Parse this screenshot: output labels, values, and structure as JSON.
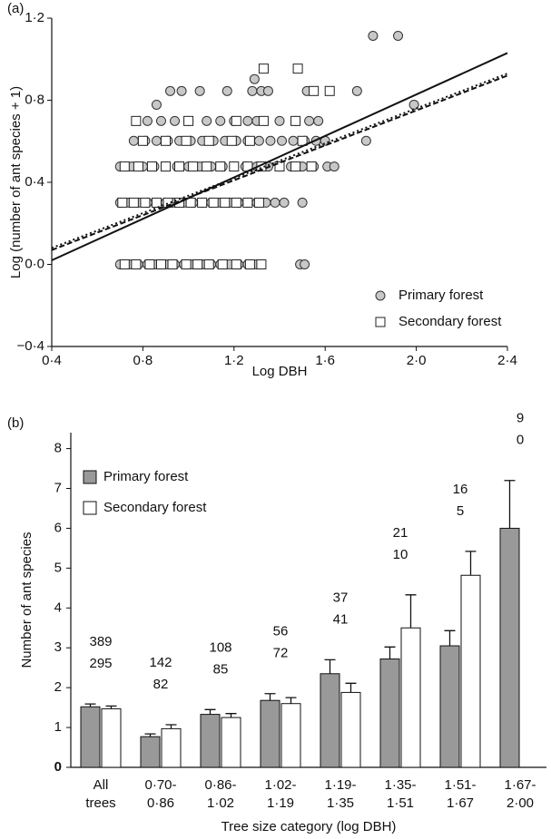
{
  "chart_data": [
    {
      "type": "scatter",
      "panel_label": "(a)",
      "x_label": "Log DBH",
      "y_label": "Log (number of ant species + 1)",
      "xlim": [
        0.4,
        2.4
      ],
      "ylim": [
        -0.4,
        1.2
      ],
      "xticks": [
        {
          "value": 0.4,
          "label": "0·4"
        },
        {
          "value": 0.8,
          "label": "0·8"
        },
        {
          "value": 1.2,
          "label": "1·2"
        },
        {
          "value": 1.6,
          "label": "1·6"
        },
        {
          "value": 2.0,
          "label": "2·0"
        },
        {
          "value": 2.4,
          "label": "2·4"
        }
      ],
      "yticks": [
        {
          "value": -0.4,
          "label": "−0·4"
        },
        {
          "value": 0.0,
          "label": "0·0"
        },
        {
          "value": 0.4,
          "label": "0·4"
        },
        {
          "value": 0.8,
          "label": "0·8"
        },
        {
          "value": 1.2,
          "label": "1·2"
        }
      ],
      "legend": "lower right",
      "series": [
        {
          "name": "Primary forest",
          "marker": "circle",
          "color": "#c8c8c8",
          "x": [
            0.7,
            0.74,
            0.78,
            0.82,
            0.86,
            0.9,
            0.94,
            0.98,
            1.02,
            1.06,
            1.1,
            1.14,
            1.18,
            1.22,
            1.26,
            1.3,
            1.49,
            1.51,
            0.7,
            0.74,
            0.78,
            0.82,
            0.86,
            0.9,
            0.94,
            0.98,
            1.02,
            1.06,
            1.1,
            1.14,
            1.18,
            1.22,
            1.26,
            1.3,
            1.34,
            1.38,
            1.42,
            1.5,
            0.7,
            0.75,
            0.8,
            0.85,
            0.9,
            0.95,
            1.0,
            1.05,
            1.1,
            1.15,
            1.2,
            1.25,
            1.3,
            1.35,
            1.4,
            1.45,
            1.5,
            1.55,
            1.61,
            1.64,
            0.76,
            0.81,
            0.86,
            0.91,
            0.96,
            1.01,
            1.06,
            1.11,
            1.16,
            1.21,
            1.26,
            1.31,
            1.36,
            1.41,
            1.46,
            1.51,
            1.56,
            1.6,
            1.78,
            0.82,
            0.88,
            0.94,
            1.0,
            1.08,
            1.14,
            1.2,
            1.26,
            1.3,
            1.4,
            1.47,
            1.53,
            1.57,
            0.86,
            1.99,
            0.92,
            0.97,
            1.05,
            1.17,
            1.28,
            1.32,
            1.35,
            1.52,
            1.74,
            1.29,
            1.81,
            1.92
          ],
          "values": [
            0,
            0,
            0,
            0,
            0,
            0,
            0,
            0,
            0,
            0,
            0,
            0,
            0,
            0,
            0,
            0,
            0,
            0,
            0.301,
            0.301,
            0.301,
            0.301,
            0.301,
            0.301,
            0.301,
            0.301,
            0.301,
            0.301,
            0.301,
            0.301,
            0.301,
            0.301,
            0.301,
            0.301,
            0.301,
            0.301,
            0.301,
            0.301,
            0.477,
            0.477,
            0.477,
            0.477,
            0.477,
            0.477,
            0.477,
            0.477,
            0.477,
            0.477,
            0.477,
            0.477,
            0.477,
            0.477,
            0.477,
            0.477,
            0.477,
            0.477,
            0.477,
            0.477,
            0.602,
            0.602,
            0.602,
            0.602,
            0.602,
            0.602,
            0.602,
            0.602,
            0.602,
            0.602,
            0.602,
            0.602,
            0.602,
            0.602,
            0.602,
            0.602,
            0.602,
            0.602,
            0.602,
            0.699,
            0.699,
            0.699,
            0.699,
            0.699,
            0.699,
            0.699,
            0.699,
            0.699,
            0.699,
            0.699,
            0.699,
            0.699,
            0.778,
            0.778,
            0.845,
            0.845,
            0.845,
            0.845,
            0.845,
            0.845,
            0.845,
            0.845,
            0.845,
            0.903,
            1.114,
            1.114
          ]
        },
        {
          "name": "Secondary forest",
          "marker": "square",
          "color": "#ffffff",
          "x": [
            0.72,
            0.77,
            0.83,
            0.88,
            0.93,
            0.99,
            1.04,
            1.09,
            1.15,
            1.21,
            1.27,
            1.32,
            0.71,
            0.76,
            0.81,
            0.86,
            0.91,
            0.96,
            1.01,
            1.06,
            1.11,
            1.16,
            1.21,
            1.26,
            1.31,
            0.72,
            0.78,
            0.84,
            0.9,
            0.96,
            1.02,
            1.08,
            1.14,
            1.2,
            1.26,
            1.32,
            1.4,
            1.47,
            1.54,
            0.8,
            0.9,
            0.99,
            1.09,
            1.19,
            1.27,
            1.5,
            0.77,
            1.0,
            1.21,
            1.33,
            1.47,
            1.55,
            1.62,
            1.33,
            1.48
          ],
          "values": [
            0,
            0,
            0,
            0,
            0,
            0,
            0,
            0,
            0,
            0,
            0,
            0,
            0.301,
            0.301,
            0.301,
            0.301,
            0.301,
            0.301,
            0.301,
            0.301,
            0.301,
            0.301,
            0.301,
            0.301,
            0.301,
            0.477,
            0.477,
            0.477,
            0.477,
            0.477,
            0.477,
            0.477,
            0.477,
            0.477,
            0.477,
            0.477,
            0.477,
            0.477,
            0.477,
            0.602,
            0.602,
            0.602,
            0.602,
            0.602,
            0.602,
            0.602,
            0.699,
            0.699,
            0.699,
            0.699,
            0.699,
            0.845,
            0.845,
            0.954,
            0.954
          ]
        }
      ],
      "fit_lines": [
        {
          "x": [
            0.4,
            2.4
          ],
          "values": [
            0.02,
            1.03
          ],
          "dash": "solid"
        },
        {
          "x": [
            0.4,
            2.4
          ],
          "values": [
            0.07,
            0.92
          ],
          "dash": "dashed"
        },
        {
          "x": [
            0.4,
            2.4
          ],
          "values": [
            0.08,
            0.93
          ],
          "dash": "dotted"
        }
      ]
    },
    {
      "type": "bar",
      "panel_label": "(b)",
      "x_label": "Tree size category (log DBH)",
      "y_label": "Number of ant species",
      "categories": [
        [
          "All",
          "trees"
        ],
        [
          "0·70-",
          "0·86"
        ],
        [
          "0·86-",
          "1·02"
        ],
        [
          "1·02-",
          "1·19"
        ],
        [
          "1·19-",
          "1·35"
        ],
        [
          "1·35-",
          "1·51"
        ],
        [
          "1·51-",
          "1·67"
        ],
        [
          "1·67-",
          "2·00"
        ]
      ],
      "ylim": [
        0,
        8.4
      ],
      "yticks": [
        0,
        1,
        2,
        3,
        4,
        5,
        6,
        7,
        8
      ],
      "legend": "upper left",
      "series": [
        {
          "name": "Primary forest",
          "color": "#999999",
          "values": [
            1.52,
            0.77,
            1.33,
            1.68,
            2.35,
            2.72,
            3.05,
            6.0
          ],
          "errors": [
            0.07,
            0.07,
            0.12,
            0.17,
            0.35,
            0.3,
            0.38,
            1.2
          ],
          "n": [
            389,
            142,
            108,
            56,
            37,
            21,
            16,
            9
          ]
        },
        {
          "name": "Secondary forest",
          "color": "#ffffff",
          "values": [
            1.47,
            0.97,
            1.25,
            1.6,
            1.88,
            3.5,
            4.82,
            null
          ],
          "errors": [
            0.07,
            0.1,
            0.1,
            0.15,
            0.23,
            0.83,
            0.6,
            null
          ],
          "n": [
            295,
            82,
            85,
            72,
            41,
            10,
            5,
            0
          ]
        }
      ]
    }
  ]
}
